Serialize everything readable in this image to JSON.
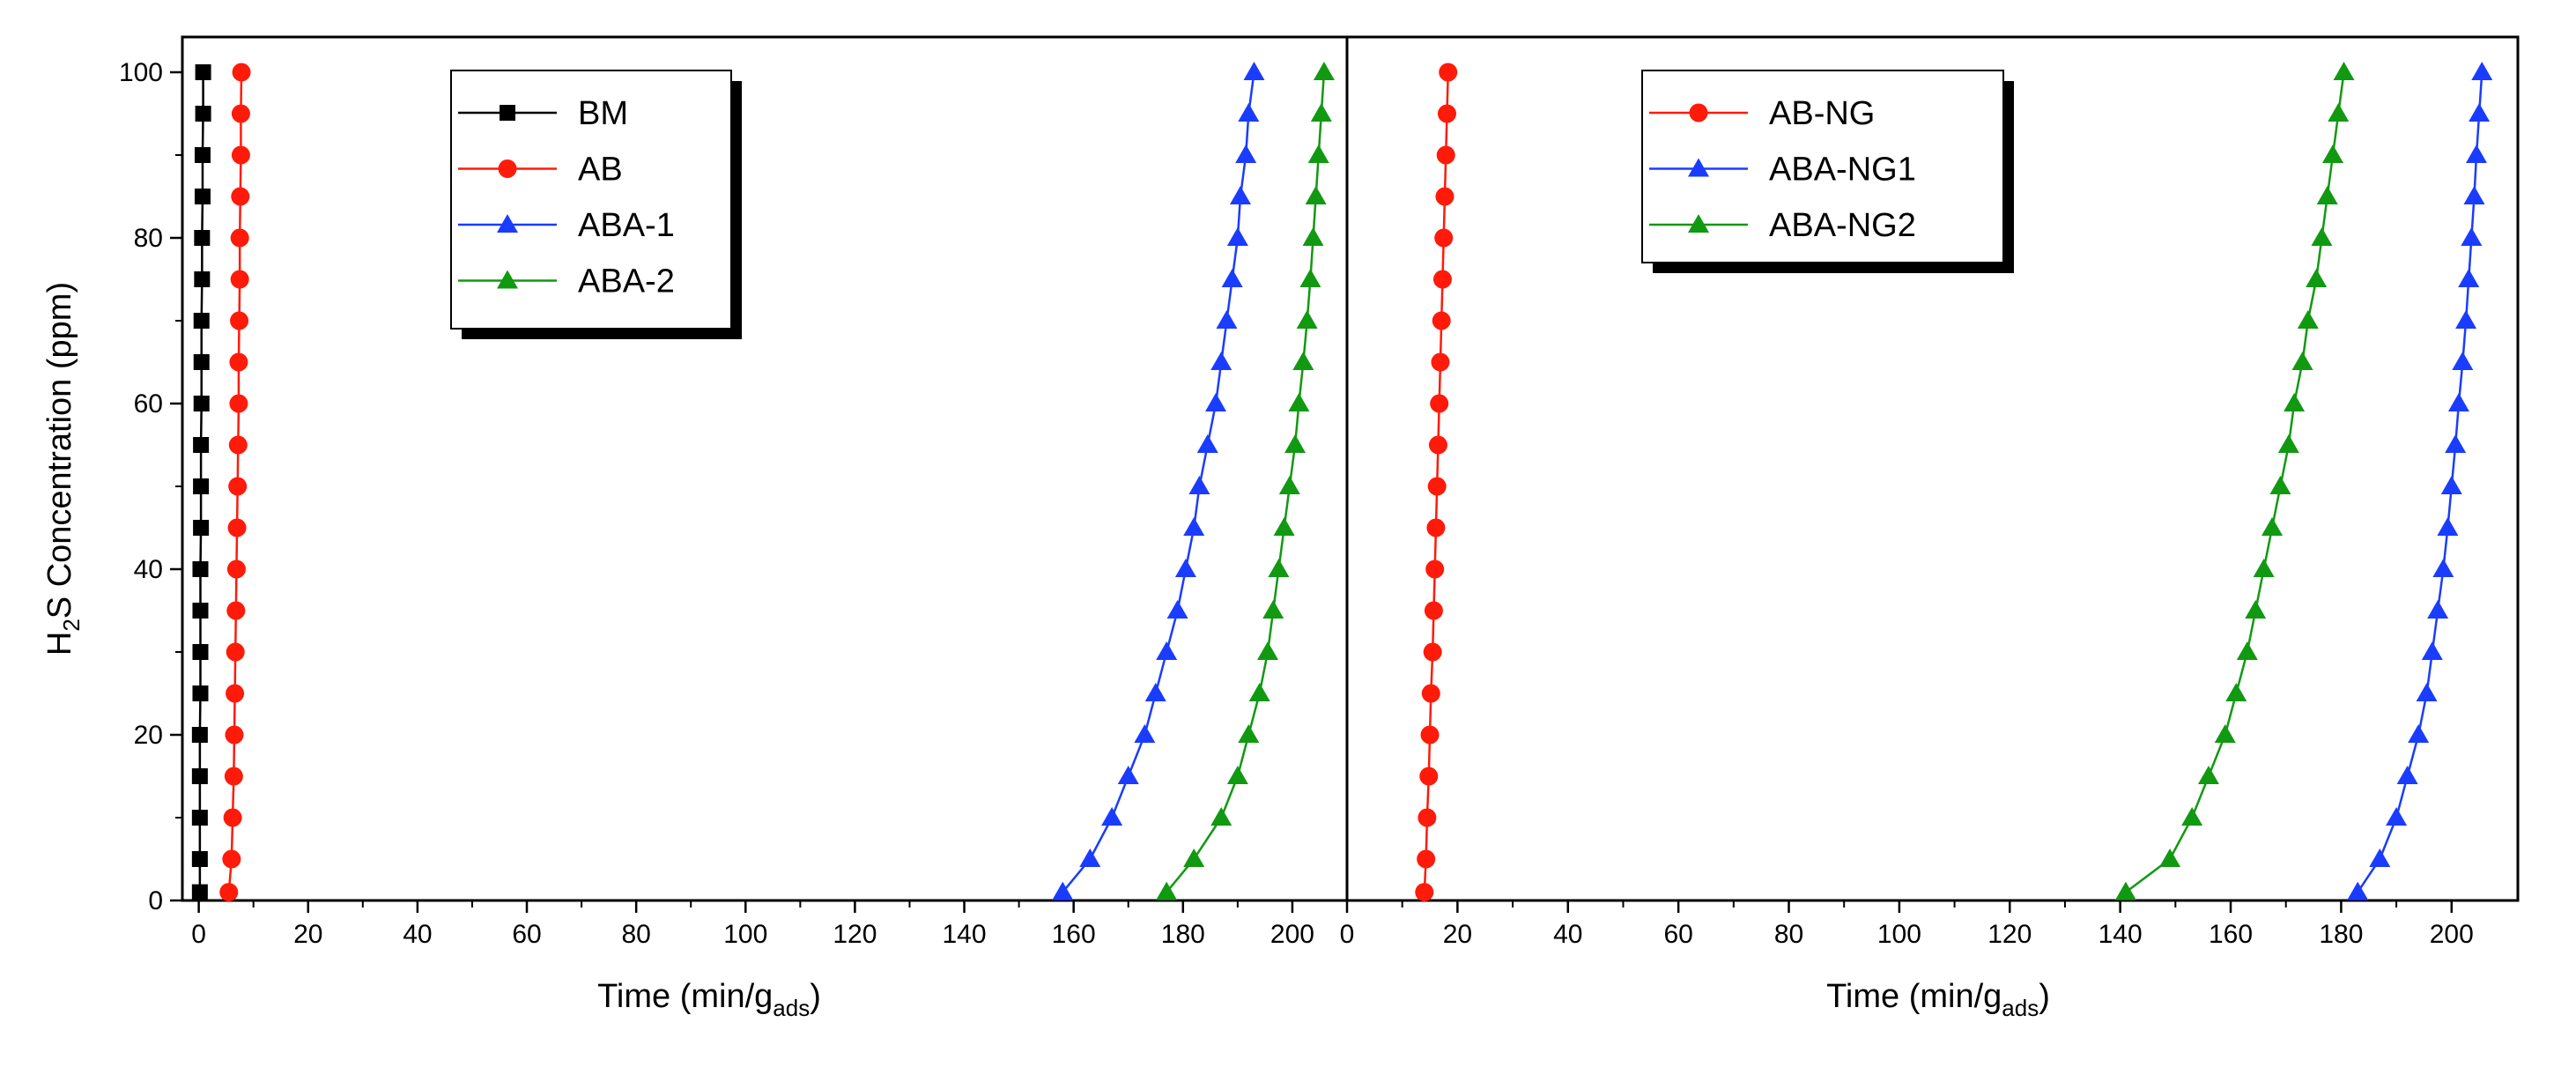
{
  "chart_data": [
    {
      "type": "line",
      "panel": "left",
      "ylabel": "H2S Concentration (ppm)",
      "ylabel_parts": {
        "pre": "H",
        "sub1": "2",
        "post": "S Concentration (ppm)"
      },
      "xlabel": "Time (min/gads)",
      "xlabel_parts": {
        "main": "Time (min/g",
        "sub": "ads",
        "close": ")"
      },
      "xlim": [
        -3,
        210
      ],
      "ylim": [
        0,
        100
      ],
      "xticks": [
        0,
        20,
        40,
        60,
        80,
        100,
        120,
        140,
        160,
        180,
        200
      ],
      "yticks": [
        0,
        20,
        40,
        60,
        80,
        100
      ],
      "legend_position": "top-center",
      "series": [
        {
          "name": "BM",
          "color": "#000000",
          "marker": "square",
          "y": [
            1,
            5,
            10,
            15,
            20,
            25,
            30,
            35,
            40,
            45,
            50,
            55,
            60,
            65,
            70,
            75,
            80,
            85,
            90,
            95,
            100
          ],
          "x": [
            0.2,
            0.2,
            0.2,
            0.2,
            0.2,
            0.3,
            0.3,
            0.3,
            0.3,
            0.4,
            0.4,
            0.4,
            0.5,
            0.5,
            0.5,
            0.6,
            0.6,
            0.7,
            0.7,
            0.8,
            0.8
          ]
        },
        {
          "name": "AB",
          "color": "#ff1a0a",
          "marker": "circle",
          "y": [
            1,
            5,
            10,
            15,
            20,
            25,
            30,
            35,
            40,
            45,
            50,
            55,
            60,
            65,
            70,
            75,
            80,
            85,
            90,
            95,
            100
          ],
          "x": [
            5.5,
            6.0,
            6.2,
            6.4,
            6.5,
            6.6,
            6.7,
            6.8,
            6.9,
            7.0,
            7.1,
            7.2,
            7.3,
            7.3,
            7.4,
            7.5,
            7.5,
            7.6,
            7.7,
            7.7,
            7.8
          ]
        },
        {
          "name": "ABA-1",
          "color": "#1a3cff",
          "marker": "triangle",
          "y": [
            1,
            5,
            10,
            15,
            20,
            25,
            30,
            35,
            40,
            45,
            50,
            55,
            60,
            65,
            70,
            75,
            80,
            85,
            90,
            95,
            100
          ],
          "x": [
            158,
            163,
            167,
            170,
            173,
            175,
            177,
            179,
            180.5,
            182,
            183,
            184.5,
            186,
            187,
            188,
            189,
            190,
            190.5,
            191.5,
            192,
            193
          ]
        },
        {
          "name": "ABA-2",
          "color": "#119911",
          "marker": "triangle",
          "y": [
            1,
            5,
            10,
            15,
            20,
            25,
            30,
            35,
            40,
            45,
            50,
            55,
            60,
            65,
            70,
            75,
            80,
            85,
            90,
            95,
            100
          ],
          "x": [
            177,
            182,
            187,
            190,
            192,
            194,
            195.5,
            196.5,
            197.5,
            198.5,
            199.5,
            200.5,
            201.2,
            202,
            202.7,
            203.3,
            203.8,
            204.3,
            204.8,
            205.3,
            205.8
          ]
        }
      ]
    },
    {
      "type": "line",
      "panel": "right",
      "xlabel": "Time (min/gads)",
      "xlabel_parts": {
        "main": "Time (min/g",
        "sub": "ads",
        "close": ")"
      },
      "xlim": [
        0,
        212
      ],
      "ylim": [
        0,
        100
      ],
      "xticks": [
        0,
        20,
        40,
        60,
        80,
        100,
        120,
        140,
        160,
        180,
        200
      ],
      "legend_position": "top-right",
      "series": [
        {
          "name": "AB-NG",
          "color": "#ff1a0a",
          "marker": "circle",
          "y": [
            1,
            5,
            10,
            15,
            20,
            25,
            30,
            35,
            40,
            45,
            50,
            55,
            60,
            65,
            70,
            75,
            80,
            85,
            90,
            95,
            100
          ],
          "x": [
            14,
            14.3,
            14.5,
            14.8,
            15,
            15.2,
            15.5,
            15.7,
            15.9,
            16.1,
            16.3,
            16.5,
            16.7,
            16.9,
            17.1,
            17.3,
            17.5,
            17.7,
            17.9,
            18.1,
            18.3
          ]
        },
        {
          "name": "ABA-NG1",
          "color": "#1a3cff",
          "marker": "triangle",
          "y": [
            1,
            5,
            10,
            15,
            20,
            25,
            30,
            35,
            40,
            45,
            50,
            55,
            60,
            65,
            70,
            75,
            80,
            85,
            90,
            95,
            100
          ],
          "x": [
            183,
            187,
            190,
            192,
            194,
            195.5,
            196.5,
            197.5,
            198.5,
            199.3,
            200,
            200.7,
            201.3,
            202,
            202.6,
            203.1,
            203.6,
            204.1,
            204.5,
            205,
            205.5
          ]
        },
        {
          "name": "ABA-NG2",
          "color": "#119911",
          "marker": "triangle",
          "y": [
            1,
            5,
            10,
            15,
            20,
            25,
            30,
            35,
            40,
            45,
            50,
            55,
            60,
            65,
            70,
            75,
            80,
            85,
            90,
            95,
            100
          ],
          "x": [
            141,
            149,
            153,
            156,
            159,
            161,
            163,
            164.5,
            166,
            167.5,
            169,
            170.5,
            171.5,
            173,
            174,
            175.5,
            176.5,
            177.5,
            178.5,
            179.5,
            180.5
          ]
        }
      ]
    }
  ]
}
